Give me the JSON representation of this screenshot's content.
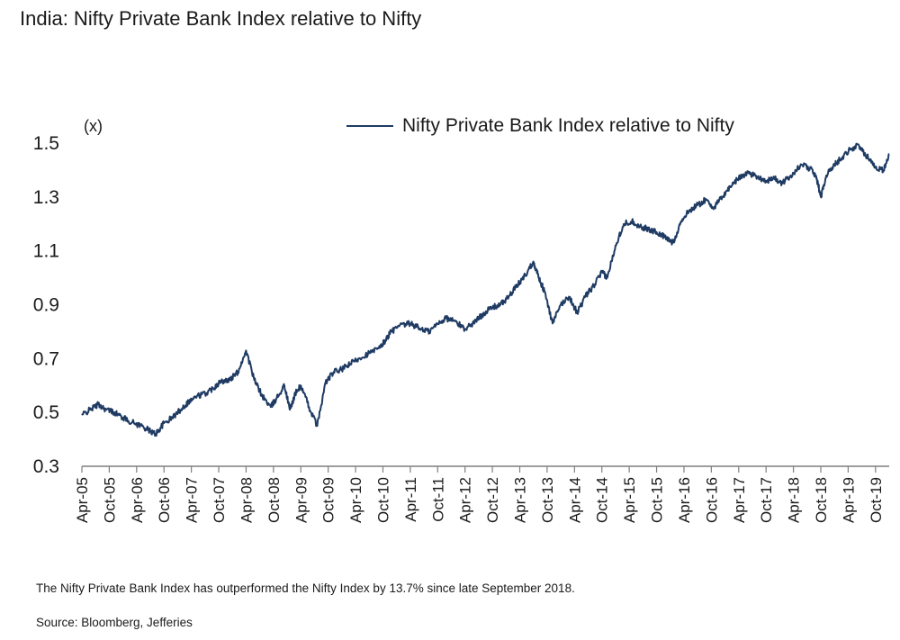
{
  "header": {
    "title": "India: Nifty Private Bank Index relative to Nifty"
  },
  "chart_data": {
    "type": "line",
    "title": "India: Nifty Private Bank Index relative to Nifty",
    "ylabel": "(x)",
    "xlabel": "",
    "ylim": [
      0.3,
      1.5
    ],
    "yticks": [
      0.3,
      0.5,
      0.7,
      0.9,
      1.1,
      1.3,
      1.5
    ],
    "ytick_labels": [
      "0.3",
      "0.5",
      "0.7",
      "0.9",
      "1.1",
      "1.3",
      "1.5"
    ],
    "xlim": [
      2005.25,
      2020.0
    ],
    "xticks": [
      2005.25,
      2005.75,
      2006.25,
      2006.75,
      2007.25,
      2007.75,
      2008.25,
      2008.75,
      2009.25,
      2009.75,
      2010.25,
      2010.75,
      2011.25,
      2011.75,
      2012.25,
      2012.75,
      2013.25,
      2013.75,
      2014.25,
      2014.75,
      2015.25,
      2015.75,
      2016.25,
      2016.75,
      2017.25,
      2017.75,
      2018.25,
      2018.75,
      2019.25,
      2019.75
    ],
    "xtick_labels": [
      "Apr-05",
      "Oct-05",
      "Apr-06",
      "Oct-06",
      "Apr-07",
      "Oct-07",
      "Apr-08",
      "Oct-08",
      "Apr-09",
      "Oct-09",
      "Apr-10",
      "Oct-10",
      "Apr-11",
      "Oct-11",
      "Apr-12",
      "Oct-12",
      "Apr-13",
      "Oct-13",
      "Apr-14",
      "Oct-14",
      "Apr-15",
      "Oct-15",
      "Apr-16",
      "Oct-16",
      "Apr-17",
      "Oct-17",
      "Apr-18",
      "Oct-18",
      "Apr-19",
      "Oct-19"
    ],
    "legend": "top-center",
    "grid": false,
    "series": [
      {
        "name": "Nifty Private Bank Index relative to Nifty",
        "color": "#1f3b63",
        "x": [
          2005.25,
          2005.4,
          2005.55,
          2005.7,
          2005.85,
          2006.0,
          2006.2,
          2006.35,
          2006.5,
          2006.6,
          2006.75,
          2006.9,
          2007.05,
          2007.2,
          2007.35,
          2007.5,
          2007.65,
          2007.75,
          2007.85,
          2007.95,
          2008.1,
          2008.25,
          2008.4,
          2008.55,
          2008.7,
          2008.8,
          2008.95,
          2009.05,
          2009.15,
          2009.25,
          2009.4,
          2009.55,
          2009.7,
          2009.85,
          2010.0,
          2010.15,
          2010.3,
          2010.5,
          2010.7,
          2010.8,
          2010.9,
          2011.05,
          2011.25,
          2011.45,
          2011.6,
          2011.75,
          2011.9,
          2012.05,
          2012.25,
          2012.45,
          2012.6,
          2012.75,
          2012.9,
          2013.05,
          2013.2,
          2013.35,
          2013.5,
          2013.6,
          2013.7,
          2013.85,
          2014.0,
          2014.15,
          2014.3,
          2014.45,
          2014.6,
          2014.75,
          2014.85,
          2015.0,
          2015.15,
          2015.3,
          2015.45,
          2015.6,
          2015.75,
          2015.9,
          2016.05,
          2016.2,
          2016.35,
          2016.5,
          2016.65,
          2016.8,
          2016.95,
          2017.1,
          2017.25,
          2017.4,
          2017.55,
          2017.75,
          2017.9,
          2018.05,
          2018.2,
          2018.4,
          2018.6,
          2018.7,
          2018.75,
          2018.85,
          2019.0,
          2019.15,
          2019.3,
          2019.45,
          2019.55,
          2019.65,
          2019.75,
          2019.9,
          2020.0
        ],
        "values": [
          0.49,
          0.51,
          0.53,
          0.51,
          0.5,
          0.48,
          0.46,
          0.45,
          0.43,
          0.42,
          0.46,
          0.48,
          0.51,
          0.54,
          0.56,
          0.57,
          0.59,
          0.61,
          0.62,
          0.62,
          0.65,
          0.73,
          0.62,
          0.56,
          0.52,
          0.55,
          0.6,
          0.51,
          0.57,
          0.6,
          0.52,
          0.45,
          0.61,
          0.65,
          0.66,
          0.68,
          0.7,
          0.72,
          0.74,
          0.77,
          0.8,
          0.82,
          0.83,
          0.81,
          0.8,
          0.83,
          0.85,
          0.84,
          0.81,
          0.84,
          0.87,
          0.89,
          0.9,
          0.93,
          0.97,
          1.01,
          1.06,
          1.0,
          0.95,
          0.83,
          0.9,
          0.93,
          0.87,
          0.93,
          0.97,
          1.02,
          1.0,
          1.12,
          1.2,
          1.21,
          1.19,
          1.18,
          1.17,
          1.15,
          1.13,
          1.21,
          1.25,
          1.27,
          1.29,
          1.26,
          1.3,
          1.34,
          1.37,
          1.39,
          1.38,
          1.36,
          1.37,
          1.35,
          1.38,
          1.42,
          1.4,
          1.35,
          1.3,
          1.38,
          1.42,
          1.45,
          1.48,
          1.49,
          1.46,
          1.44,
          1.41,
          1.4,
          1.46
        ]
      }
    ]
  },
  "footer": {
    "note": "The Nifty Private Bank Index has outperformed the Nifty Index by 13.7% since late September 2018.",
    "source": "Source: Bloomberg, Jefferies"
  }
}
